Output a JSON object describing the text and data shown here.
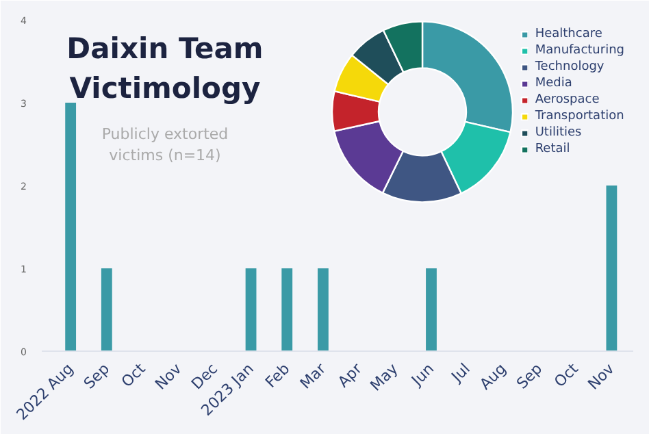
{
  "chart_data": [
    {
      "type": "bar",
      "title": "Daixin Team Victimology",
      "subtitle": "Publicly extorted victims (n=14)",
      "categories": [
        "2022 Aug",
        "Sep",
        "Oct",
        "Nov",
        "Dec",
        "2023 Jan",
        "Feb",
        "Mar",
        "Apr",
        "May",
        "Jun",
        "Jul",
        "Aug",
        "Sep",
        "Oct",
        "Nov"
      ],
      "values": [
        3,
        1,
        0,
        0,
        0,
        1,
        1,
        1,
        0,
        0,
        1,
        0,
        0,
        0,
        0,
        2
      ],
      "color": "#3a9aa6",
      "ylim": [
        0,
        4
      ],
      "yticks": [
        0,
        1,
        2,
        3,
        4
      ]
    },
    {
      "type": "donut",
      "categories": [
        "Healthcare",
        "Manufacturing",
        "Technology",
        "Media",
        "Aerospace",
        "Transportation",
        "Utilities",
        "Retail"
      ],
      "values": [
        28.6,
        14.3,
        14.3,
        14.3,
        7.1,
        7.1,
        7.1,
        7.1
      ],
      "colors": [
        "#3a9aa6",
        "#1fc0aa",
        "#3f5683",
        "#5b3a94",
        "#c4232b",
        "#f5d90a",
        "#1f4e5a",
        "#13725f"
      ],
      "legend": "right"
    }
  ]
}
